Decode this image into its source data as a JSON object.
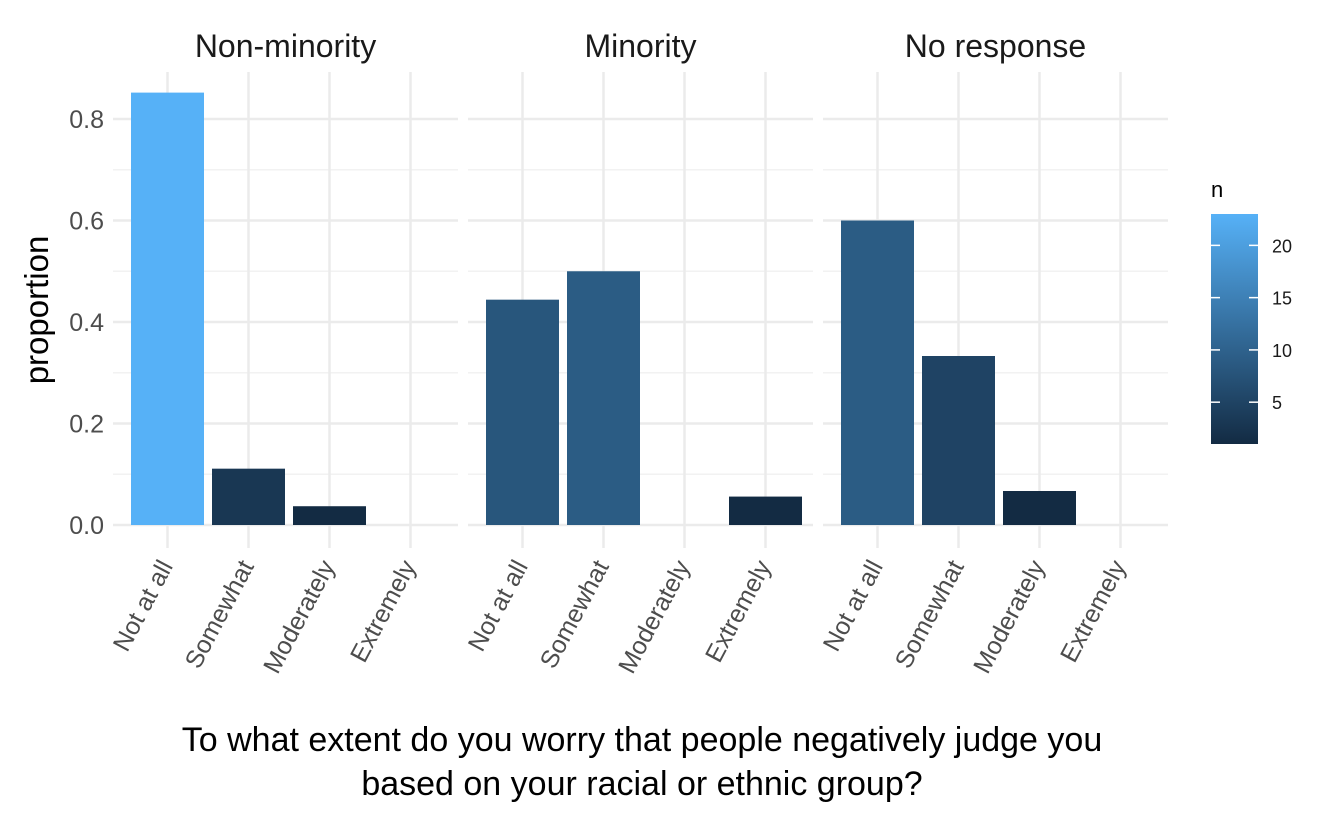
{
  "chart_data": {
    "type": "bar",
    "ylabel": "proportion",
    "xlabel_lines": [
      "To what extent do you worry that people negatively judge you",
      "based on your racial or ethnic group?"
    ],
    "categories": [
      "Not at all",
      "Somewhat",
      "Moderately",
      "Extremely"
    ],
    "ylim": [
      0,
      0.85
    ],
    "yticks": [
      "0.0",
      "0.2",
      "0.4",
      "0.6",
      "0.8"
    ],
    "grid": true,
    "facets": [
      {
        "name": "Non-minority",
        "values": [
          0.852,
          0.111,
          0.037,
          0
        ],
        "n": [
          23,
          3,
          1,
          0
        ]
      },
      {
        "name": "Minority",
        "values": [
          0.444,
          0.5,
          0,
          0.056
        ],
        "n": [
          8,
          9,
          0,
          1
        ]
      },
      {
        "name": "No response",
        "values": [
          0.6,
          0.333,
          0.067,
          0
        ],
        "n": [
          9,
          5,
          1,
          0
        ]
      }
    ],
    "legend": {
      "title": "n",
      "placement": "right",
      "ticks": [
        "5",
        "10",
        "15",
        "20"
      ],
      "range": [
        1,
        23
      ],
      "color_low": "#132B43",
      "color_high": "#56B1F7"
    }
  }
}
